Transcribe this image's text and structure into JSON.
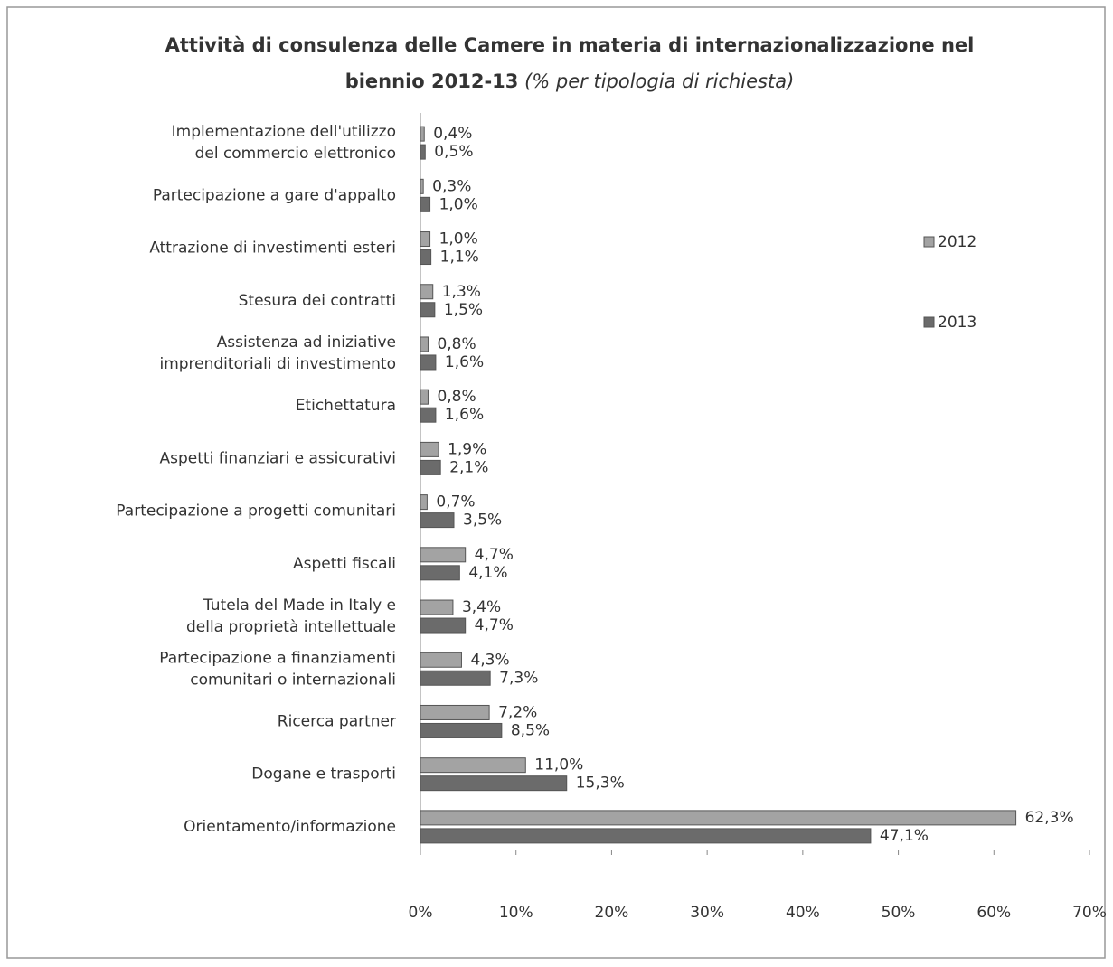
{
  "chart_data": {
    "type": "bar",
    "orientation": "horizontal",
    "title": "Attività di consulenza delle Camere in materia di internazionalizzazione nel biennio 2012-13",
    "subtitle": "(% per tipologia di richiesta)",
    "categories": [
      "Implementazione dell'utilizzo\ndel commercio elettronico",
      "Partecipazione a gare d'appalto",
      "Attrazione di investimenti esteri",
      "Stesura dei contratti",
      "Assistenza ad iniziative\nimprenditoriali di investimento",
      "Etichettatura",
      "Aspetti finanziari e assicurativi",
      "Partecipazione a progetti comunitari",
      "Aspetti fiscali",
      "Tutela del Made in Italy e\ndella proprietà intellettuale",
      "Partecipazione a finanziamenti\ncomunitari o internazionali",
      "Ricerca partner",
      "Dogane e trasporti",
      "Orientamento/informazione"
    ],
    "series": [
      {
        "name": "2012",
        "color": "#a3a3a3",
        "values": [
          0.4,
          0.3,
          1.0,
          1.3,
          0.8,
          0.8,
          1.9,
          0.7,
          4.7,
          3.4,
          4.3,
          7.2,
          11.0,
          62.3
        ],
        "value_labels": [
          "0,4%",
          "0,3%",
          "1,0%",
          "1,3%",
          "0,8%",
          "0,8%",
          "1,9%",
          "0,7%",
          "4,7%",
          "3,4%",
          "4,3%",
          "7,2%",
          "11,0%",
          "62,3%"
        ]
      },
      {
        "name": "2013",
        "color": "#6b6b6b",
        "values": [
          0.5,
          1.0,
          1.1,
          1.5,
          1.6,
          1.6,
          2.1,
          3.5,
          4.1,
          4.7,
          7.3,
          8.5,
          15.3,
          47.1
        ],
        "value_labels": [
          "0,5%",
          "1,0%",
          "1,1%",
          "1,5%",
          "1,6%",
          "1,6%",
          "2,1%",
          "3,5%",
          "4,1%",
          "4,7%",
          "7,3%",
          "8,5%",
          "15,3%",
          "47,1%"
        ]
      }
    ],
    "xlim": [
      0,
      70
    ],
    "xticks": [
      {
        "value": 0,
        "label": "0%"
      },
      {
        "value": 10,
        "label": "10%"
      },
      {
        "value": 20,
        "label": "20%"
      },
      {
        "value": 30,
        "label": "30%"
      },
      {
        "value": 40,
        "label": "40%"
      },
      {
        "value": 50,
        "label": "50%"
      },
      {
        "value": 60,
        "label": "60%"
      },
      {
        "value": 70,
        "label": "70%"
      }
    ],
    "legend": "right",
    "grid": false
  }
}
